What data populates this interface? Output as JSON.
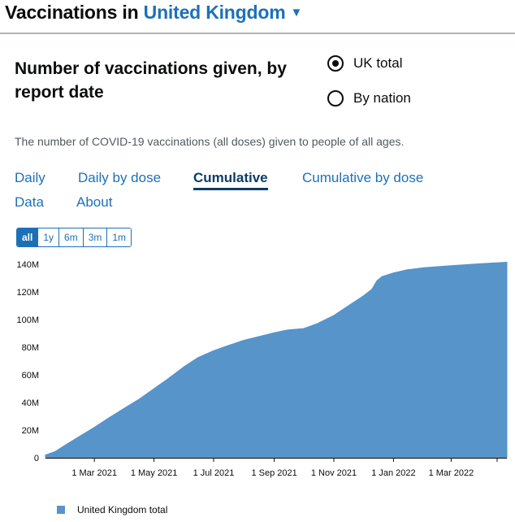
{
  "header": {
    "title_prefix": "Vaccinations in",
    "region": "United Kingdom",
    "caret_icon": "caret-down-icon"
  },
  "card": {
    "title": "Number of vaccinations given, by report date",
    "description": "The number of COVID-19 vaccinations (all doses) given to people of all ages.",
    "radio_options": [
      {
        "label": "UK total",
        "selected": true
      },
      {
        "label": "By nation",
        "selected": false
      }
    ],
    "tabs": [
      {
        "label": "Daily",
        "active": false
      },
      {
        "label": "Daily by dose",
        "active": false
      },
      {
        "label": "Cumulative",
        "active": true
      },
      {
        "label": "Cumulative by dose",
        "active": false
      },
      {
        "label": "Data",
        "active": false
      },
      {
        "label": "About",
        "active": false
      }
    ],
    "time_ranges": [
      {
        "label": "all",
        "active": true
      },
      {
        "label": "1y",
        "active": false
      },
      {
        "label": "6m",
        "active": false
      },
      {
        "label": "3m",
        "active": false
      },
      {
        "label": "1m",
        "active": false
      }
    ]
  },
  "colors": {
    "accent": "#1d70b8",
    "series_fill": "#5694ca",
    "active_tab": "#0b3d68"
  },
  "chart_data": {
    "type": "area",
    "title": "",
    "xlabel": "",
    "ylabel": "",
    "ylim": [
      0,
      140000000
    ],
    "y_ticks": [
      0,
      20000000,
      40000000,
      60000000,
      80000000,
      100000000,
      120000000,
      140000000
    ],
    "y_tick_labels": [
      "0",
      "20M",
      "40M",
      "60M",
      "80M",
      "100M",
      "120M",
      "140M"
    ],
    "x_range": [
      "2021-01-10",
      "2022-04-27"
    ],
    "x_ticks": [
      "2021-03-01",
      "2021-05-01",
      "2021-07-01",
      "2021-09-01",
      "2021-11-01",
      "2022-01-01",
      "2022-03-01"
    ],
    "x_tick_labels": [
      "1 Mar 2021",
      "1 May 2021",
      "1 Jul 2021",
      "1 Sep 2021",
      "1 Nov 2021",
      "1 Jan 2022",
      "1 Mar 2022"
    ],
    "series": [
      {
        "name": "United Kingdom total",
        "x": [
          "2021-01-10",
          "2021-01-20",
          "2021-02-01",
          "2021-02-15",
          "2021-03-01",
          "2021-03-15",
          "2021-04-01",
          "2021-04-15",
          "2021-05-01",
          "2021-05-15",
          "2021-06-01",
          "2021-06-15",
          "2021-07-01",
          "2021-07-15",
          "2021-08-01",
          "2021-08-15",
          "2021-09-01",
          "2021-09-15",
          "2021-10-01",
          "2021-10-15",
          "2021-11-01",
          "2021-11-15",
          "2021-12-01",
          "2021-12-10",
          "2021-12-15",
          "2021-12-20",
          "2021-12-31",
          "2022-01-15",
          "2022-02-01",
          "2022-03-01",
          "2022-04-01",
          "2022-04-27"
        ],
        "values": [
          2000000,
          4500000,
          10000000,
          16000000,
          22000000,
          28500000,
          36000000,
          42000000,
          50000000,
          57000000,
          66000000,
          72500000,
          77500000,
          81000000,
          85000000,
          87500000,
          90500000,
          92500000,
          93500000,
          97000000,
          103000000,
          109500000,
          117000000,
          122000000,
          128000000,
          131000000,
          133500000,
          136000000,
          137500000,
          139000000,
          140500000,
          141500000
        ]
      }
    ],
    "legend": {
      "position": "bottom-left",
      "entries": [
        "United Kingdom total"
      ]
    },
    "grid": false
  }
}
